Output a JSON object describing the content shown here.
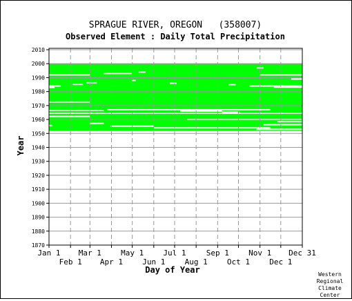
{
  "chart_data": {
    "type": "heatmap",
    "title": "SPRAGUE RIVER, OREGON   (358007)",
    "subtitle": "Observed Element : Daily Total Precipitation",
    "xlabel": "Day of Year",
    "ylabel": "Year",
    "xlim": [
      1,
      366
    ],
    "ylim": [
      1870,
      2011
    ],
    "y_ticks": [
      1870,
      1880,
      1890,
      1900,
      1910,
      1920,
      1930,
      1940,
      1950,
      1960,
      1970,
      1980,
      1990,
      2000,
      2010
    ],
    "x_ticks_upper": [
      {
        "label": "Jan 1",
        "day": 1
      },
      {
        "label": "Mar 1",
        "day": 60
      },
      {
        "label": "May 1",
        "day": 121
      },
      {
        "label": "Jul 1",
        "day": 182
      },
      {
        "label": "Sep 1",
        "day": 244
      },
      {
        "label": "Nov 1",
        "day": 305
      },
      {
        "label": "Dec 31",
        "day": 366
      }
    ],
    "x_ticks_lower": [
      {
        "label": "Feb 1",
        "day": 32
      },
      {
        "label": "Apr 1",
        "day": 91
      },
      {
        "label": "Jun 1",
        "day": 152
      },
      {
        "label": "Aug 1",
        "day": 213
      },
      {
        "label": "Oct 1",
        "day": 274
      },
      {
        "label": "Dec 1",
        "day": 335
      }
    ],
    "grid": true,
    "data_color": "#00ff00",
    "observed_periods": [
      {
        "from_year": 1951.8,
        "from_day": 1,
        "to_year": 2000.2,
        "to_day": 366
      }
    ],
    "missing_segments": [
      {
        "year": 1955.7,
        "from_day": 1,
        "to_day": 6
      },
      {
        "year": 1957.2,
        "from_day": 60,
        "to_day": 80
      },
      {
        "year": 1955.2,
        "from_day": 90,
        "to_day": 152
      },
      {
        "year": 1954.0,
        "from_day": 152,
        "to_day": 320
      },
      {
        "year": 1953.0,
        "from_day": 300,
        "to_day": 366
      },
      {
        "year": 1956.3,
        "from_day": 310,
        "to_day": 366
      },
      {
        "year": 1958.5,
        "from_day": 330,
        "to_day": 366
      },
      {
        "year": 1962.2,
        "from_day": 1,
        "to_day": 60
      },
      {
        "year": 1964.5,
        "from_day": 1,
        "to_day": 366
      },
      {
        "year": 1966.5,
        "from_day": 1,
        "to_day": 80
      },
      {
        "year": 1967.0,
        "from_day": 85,
        "to_day": 320
      },
      {
        "year": 1966.0,
        "from_day": 190,
        "to_day": 250
      },
      {
        "year": 1965.3,
        "from_day": 250,
        "to_day": 275
      },
      {
        "year": 1960.0,
        "from_day": 200,
        "to_day": 366
      },
      {
        "year": 1972.5,
        "from_day": 1,
        "to_day": 60
      },
      {
        "year": 1983.0,
        "from_day": 1,
        "to_day": 9
      },
      {
        "year": 1984.0,
        "from_day": 1,
        "to_day": 18
      },
      {
        "year": 1985.2,
        "from_day": 35,
        "to_day": 50
      },
      {
        "year": 1986.3,
        "from_day": 55,
        "to_day": 70
      },
      {
        "year": 1992.0,
        "from_day": 1,
        "to_day": 60
      },
      {
        "year": 1993.0,
        "from_day": 80,
        "to_day": 120
      },
      {
        "year": 1994.0,
        "from_day": 130,
        "to_day": 140
      },
      {
        "year": 1988.0,
        "from_day": 120,
        "to_day": 126
      },
      {
        "year": 1986.0,
        "from_day": 175,
        "to_day": 185
      },
      {
        "year": 1985.0,
        "from_day": 260,
        "to_day": 270
      },
      {
        "year": 1984.0,
        "from_day": 290,
        "to_day": 366
      },
      {
        "year": 1983.2,
        "from_day": 325,
        "to_day": 366
      },
      {
        "year": 1992.0,
        "from_day": 305,
        "to_day": 366
      },
      {
        "year": 1989.0,
        "from_day": 350,
        "to_day": 366
      },
      {
        "year": 1997.0,
        "from_day": 300,
        "to_day": 310
      }
    ]
  },
  "credit": [
    "Western",
    "Regional",
    "Climate",
    "Center"
  ]
}
